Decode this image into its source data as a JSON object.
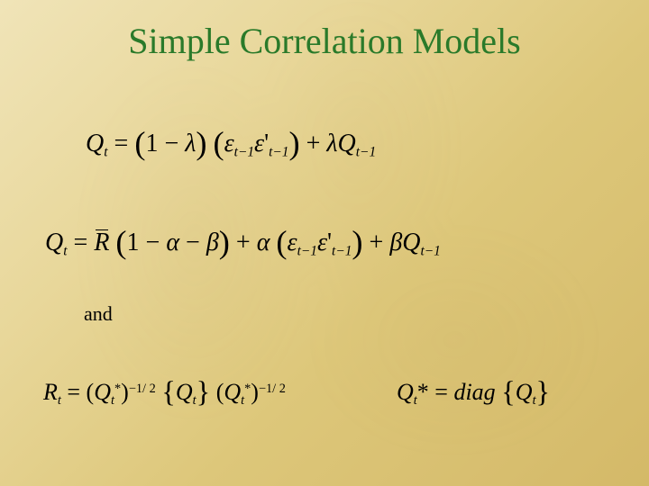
{
  "colors": {
    "title": "#2a7a2a",
    "text": "#000000",
    "bg_gradient": [
      "#f0e4b8",
      "#e8d79a",
      "#ddc77a",
      "#d4b968"
    ]
  },
  "typography": {
    "title_fontsize": 40,
    "equation_fontsize": 28,
    "and_fontsize": 22,
    "font_family": "Times New Roman"
  },
  "title": "Simple Correlation Models",
  "and_label": "and",
  "eq1": {
    "lhs": "Q",
    "lhs_sub": "t",
    "t1a": "1",
    "t1b": "λ",
    "eps1": "ε",
    "eps1_sub": "t−1",
    "eps2": "ε",
    "eps2_prime": "'",
    "eps2_sub": "t−1",
    "t2a": "λ",
    "t2b": "Q",
    "t2b_sub": "t−1"
  },
  "eq2": {
    "lhs": "Q",
    "lhs_sub": "t",
    "rbar": "R",
    "c1": "1",
    "c2": "α",
    "c3": "β",
    "a": "α",
    "eps1": "ε",
    "eps1_sub": "t−1",
    "eps2": "ε",
    "eps2_prime": "'",
    "eps2_sub": "t−1",
    "b": "β",
    "bq": "Q",
    "bq_sub": "t−1"
  },
  "eq3": {
    "lhs": "R",
    "lhs_sub": "t",
    "q1": "Q",
    "q1_sub": "t",
    "q1_sup": "*",
    "exp1": "−1/ 2",
    "q2": "Q",
    "q2_sub": "t",
    "q3": "Q",
    "q3_sub": "t",
    "q3_sup": "*",
    "exp2": "−1/ 2"
  },
  "eq3b": {
    "lhs": "Q",
    "lhs_sub": "t",
    "lhs_sup": "*",
    "diag": "diag",
    "q": "Q",
    "q_sub": "t"
  }
}
